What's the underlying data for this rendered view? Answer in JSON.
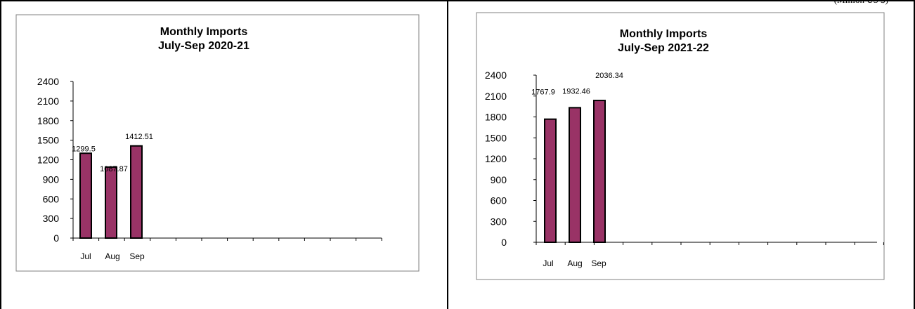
{
  "unit_label": "(Million US $)",
  "chart_data": [
    {
      "type": "bar",
      "title": "Monthly Imports",
      "subtitle": "July-Sep 2020-21",
      "categories": [
        "Jul",
        "Aug",
        "Sep"
      ],
      "values": [
        1299.5,
        1087.87,
        1412.51
      ],
      "data_labels": [
        "1299.5",
        "1087.87",
        "1412.51"
      ],
      "ylim": [
        0,
        2400
      ],
      "yticks": [
        "0",
        "300",
        "600",
        "900",
        "1200",
        "1500",
        "1800",
        "2100",
        "2400"
      ],
      "bar_color": "#993366",
      "grid": false,
      "legend": "none"
    },
    {
      "type": "bar",
      "title": "Monthly Imports",
      "subtitle": "July-Sep 2021-22",
      "categories": [
        "Jul",
        "Aug",
        "Sep"
      ],
      "values": [
        1767.9,
        1932.46,
        2036.34
      ],
      "data_labels": [
        "1767.9",
        "1932.46",
        "2036.34"
      ],
      "ylim": [
        0,
        2400
      ],
      "yticks": [
        "0",
        "300",
        "600",
        "900",
        "1200",
        "1500",
        "1800",
        "2100",
        "2400"
      ],
      "bar_color": "#993366",
      "grid": false,
      "legend": "none"
    }
  ]
}
